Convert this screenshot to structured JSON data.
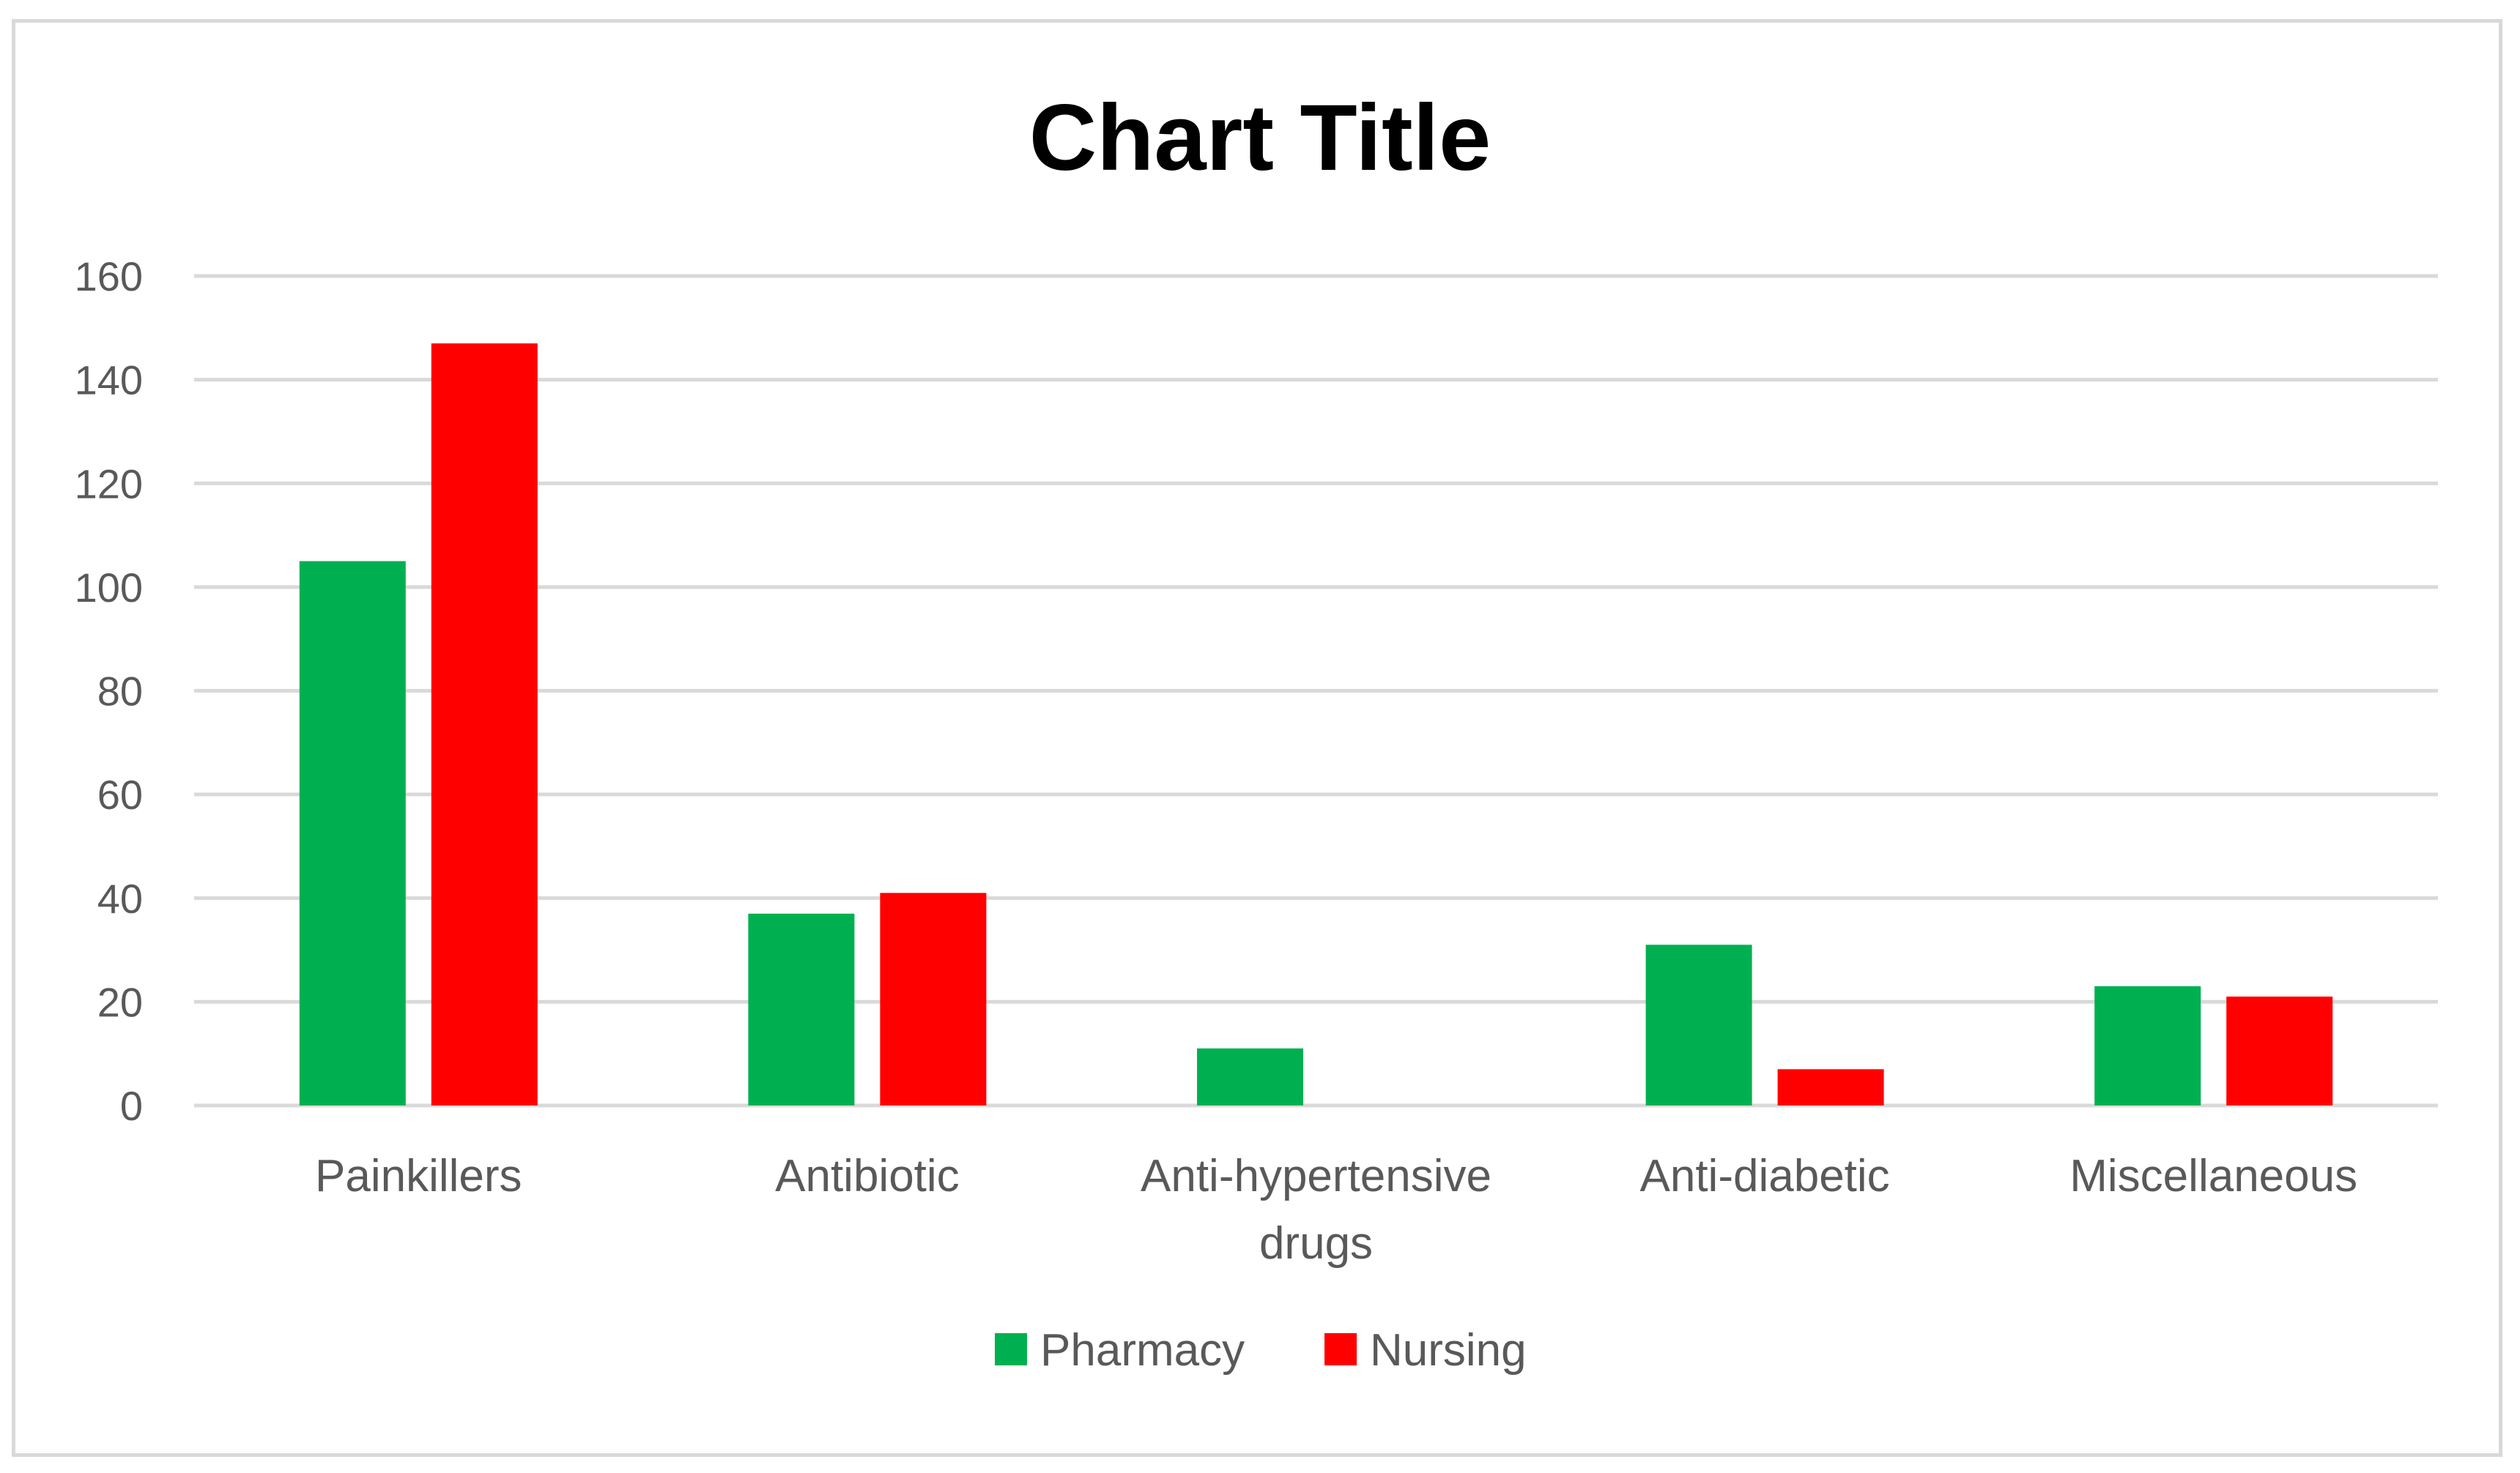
{
  "chart_data": {
    "type": "bar",
    "title": "Chart Title",
    "categories": [
      [
        "Painkillers"
      ],
      [
        "Antibiotic"
      ],
      [
        "Anti-hypertensive",
        "drugs"
      ],
      [
        "Anti-diabetic"
      ],
      [
        "Miscellaneous"
      ]
    ],
    "series": [
      {
        "name": "Pharmacy",
        "color": "#00b050",
        "values": [
          105,
          37,
          11,
          31,
          23
        ]
      },
      {
        "name": "Nursing",
        "color": "#ff0000",
        "values": [
          147,
          41,
          0,
          7,
          21
        ]
      }
    ],
    "ylim": [
      0,
      160
    ],
    "yticks": [
      0,
      20,
      40,
      60,
      80,
      100,
      120,
      140,
      160
    ],
    "xlabel": "",
    "ylabel": "",
    "grid": true,
    "legend_position": "bottom"
  }
}
